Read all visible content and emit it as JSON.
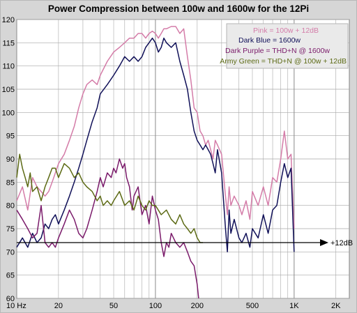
{
  "chart_data": {
    "type": "line",
    "title": "Power Compression between 100w and 1600w for the 12Pi",
    "xlabel": "",
    "ylabel": "",
    "x_scale": "log",
    "xlim": [
      10,
      2500
    ],
    "ylim": [
      60,
      120
    ],
    "grid": true,
    "legend_position": "top-right",
    "y_ticks": [
      60,
      65,
      70,
      75,
      80,
      85,
      90,
      95,
      100,
      105,
      110,
      115,
      120
    ],
    "x_ticks": [
      {
        "value": 10,
        "label": "10  Hz"
      },
      {
        "value": 20,
        "label": "20"
      },
      {
        "value": 50,
        "label": "50"
      },
      {
        "value": 100,
        "label": "100"
      },
      {
        "value": 200,
        "label": "200"
      },
      {
        "value": 500,
        "label": "500"
      },
      {
        "value": 1000,
        "label": "1K"
      },
      {
        "value": 2000,
        "label": "2K"
      }
    ],
    "colors": {
      "pink": "#d47ca8",
      "dark_blue": "#101058",
      "dark_purple": "#7a1a6a",
      "army_green": "#5c6a14",
      "plot_bg": "#ffffff",
      "grid": "#a8a8a8"
    },
    "legend": [
      "Pink = 100w + 12dB",
      "Dark Blue = 1600w",
      "Dark Purple = THD+N @ 1600w",
      "Army Green = THD+N @ 100w + 12dB"
    ],
    "annotation": {
      "label": "+12dB",
      "y": 72
    },
    "series": [
      {
        "key": "pink",
        "x": [
          10,
          11,
          12,
          13,
          14,
          15,
          16,
          17,
          18,
          19,
          20,
          22,
          24,
          26,
          28,
          30,
          32,
          35,
          38,
          40,
          45,
          50,
          55,
          60,
          65,
          70,
          75,
          80,
          85,
          90,
          95,
          100,
          105,
          110,
          115,
          120,
          130,
          140,
          150,
          160,
          170,
          180,
          190,
          200,
          210,
          220,
          230,
          240,
          250,
          260,
          270,
          280,
          300,
          320,
          330,
          340,
          350,
          370,
          400,
          420,
          450,
          480,
          500,
          550,
          600,
          650,
          700,
          750,
          800,
          850,
          900,
          950,
          1000
        ],
        "y": [
          81,
          84,
          79,
          86,
          84,
          83,
          82,
          83,
          85,
          87,
          89,
          91,
          94,
          97,
          101,
          104,
          106,
          107,
          106,
          108,
          111,
          113,
          114,
          115,
          116,
          116,
          117,
          117,
          116,
          117,
          117.5,
          117,
          116,
          117,
          118,
          118,
          118.5,
          118.5,
          117,
          118,
          112,
          107,
          101,
          100,
          96,
          95,
          93,
          94,
          92,
          90,
          94,
          93,
          91,
          82,
          78,
          84,
          80,
          82,
          80,
          78,
          81,
          77,
          83,
          80,
          84,
          80,
          86,
          85,
          90,
          96,
          90,
          91,
          75
        ]
      },
      {
        "key": "dark_blue",
        "x": [
          10,
          11,
          12,
          13,
          14,
          15,
          16,
          17,
          18,
          19,
          20,
          22,
          24,
          26,
          28,
          30,
          32,
          35,
          38,
          40,
          45,
          50,
          55,
          60,
          65,
          70,
          75,
          80,
          85,
          90,
          95,
          100,
          105,
          110,
          115,
          120,
          130,
          140,
          150,
          160,
          170,
          180,
          190,
          200,
          210,
          220,
          230,
          240,
          250,
          260,
          270,
          280,
          300,
          320,
          330,
          340,
          350,
          370,
          400,
          420,
          450,
          480,
          500,
          550,
          600,
          650,
          700,
          750,
          800,
          850,
          900,
          950,
          1000
        ],
        "y": [
          71,
          73,
          71,
          74,
          72,
          73,
          76,
          75,
          77,
          78,
          76,
          79,
          82,
          85,
          88,
          91,
          94,
          98,
          101,
          104,
          106,
          108,
          110,
          112,
          111,
          112,
          111,
          112,
          114,
          115,
          116,
          115,
          113,
          114,
          116,
          115,
          114,
          115,
          111,
          108,
          105,
          100,
          96,
          94,
          93,
          92,
          93,
          92,
          91,
          89,
          87,
          92,
          87,
          75,
          70,
          79,
          74,
          77,
          73,
          72,
          74,
          71,
          75,
          73,
          78,
          74,
          79,
          80,
          85,
          89,
          86,
          88,
          70
        ]
      },
      {
        "key": "dark_purple",
        "x": [
          10,
          11,
          12,
          13,
          14,
          15,
          16,
          17,
          18,
          19,
          20,
          22,
          24,
          26,
          28,
          30,
          32,
          35,
          38,
          40,
          42,
          45,
          48,
          50,
          52,
          55,
          58,
          60,
          62,
          65,
          68,
          70,
          75,
          80,
          85,
          90,
          95,
          100,
          105,
          110,
          115,
          120,
          125,
          130,
          135,
          140,
          150,
          160,
          170,
          180,
          190,
          200,
          205
        ],
        "y": [
          79,
          77,
          75,
          73,
          74,
          80,
          72,
          71,
          72,
          71,
          73,
          76,
          79,
          77,
          74,
          73,
          75,
          79,
          83,
          86,
          84,
          87,
          86,
          88,
          87,
          90,
          88,
          89,
          86,
          84,
          79,
          82,
          84,
          78,
          80,
          76,
          82,
          79,
          77,
          72,
          69,
          72,
          71,
          74,
          73,
          72,
          71,
          72,
          70,
          68,
          67,
          63,
          60
        ]
      },
      {
        "key": "army_green",
        "x": [
          10,
          10.5,
          11,
          11.5,
          12,
          12.5,
          13,
          14,
          15,
          16,
          17,
          18,
          19,
          20,
          22,
          24,
          26,
          28,
          30,
          32,
          35,
          38,
          40,
          42,
          45,
          48,
          50,
          55,
          60,
          65,
          70,
          75,
          80,
          85,
          90,
          95,
          100,
          110,
          120,
          130,
          140,
          150,
          160,
          170,
          180,
          190,
          200,
          210,
          220
        ],
        "y": [
          86,
          91,
          88,
          86,
          84,
          87,
          83,
          84,
          81,
          84,
          86,
          88,
          88,
          86,
          89,
          88,
          86,
          87,
          85,
          84,
          83,
          81,
          82,
          80,
          81,
          80,
          81,
          83,
          80,
          81,
          79,
          82,
          80,
          79,
          81,
          80,
          80,
          78,
          79,
          77,
          76,
          78,
          76,
          75,
          74,
          75,
          73,
          72,
          72
        ]
      }
    ]
  }
}
